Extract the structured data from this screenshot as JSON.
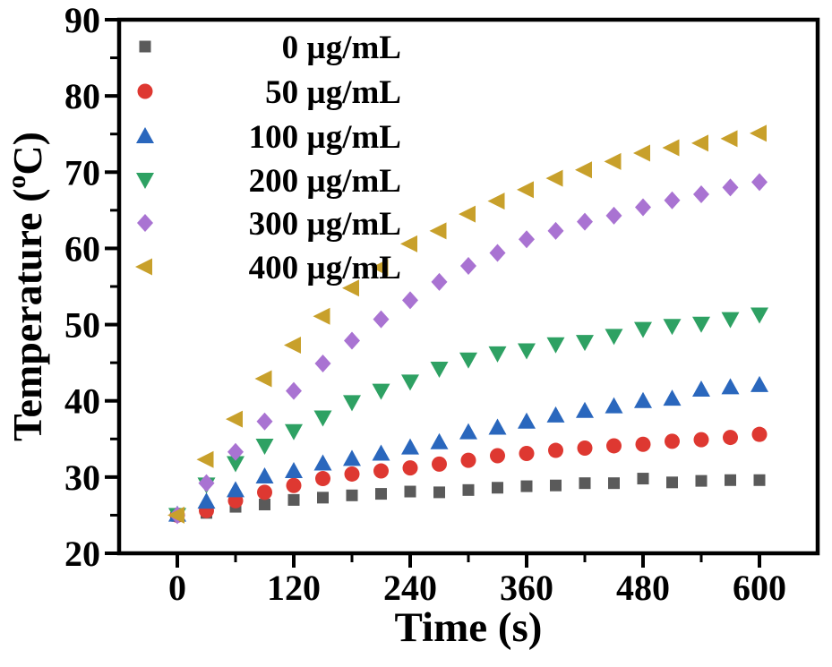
{
  "chart_data": {
    "type": "scatter",
    "title": "",
    "xlabel": "Time (s)",
    "ylabel": "Temperature (°C)",
    "ylabel_parts": {
      "pre": "Temperature (",
      "sup": "o",
      "post": "C)"
    },
    "xlim": [
      -60,
      660
    ],
    "ylim": [
      20,
      90
    ],
    "xticks": [
      0,
      120,
      240,
      360,
      480,
      600
    ],
    "yticks": [
      20,
      30,
      40,
      50,
      60,
      70,
      80,
      90
    ],
    "x_minor_ticks": [
      60,
      180,
      300,
      420,
      540
    ],
    "y_minor_ticks": [
      25,
      35,
      45,
      55,
      65,
      75,
      85
    ],
    "grid": false,
    "legend_position": "top-left",
    "axis_color": "#000000",
    "background_color": "#ffffff",
    "x": [
      0,
      30,
      60,
      90,
      120,
      150,
      180,
      210,
      240,
      270,
      300,
      330,
      360,
      390,
      420,
      450,
      480,
      510,
      540,
      570,
      600
    ],
    "series": [
      {
        "name": "0 µg/mL",
        "marker": "square",
        "color": "#5a5a5a",
        "values": [
          24.9,
          25.3,
          26.1,
          26.4,
          27.0,
          27.3,
          27.6,
          27.8,
          28.1,
          28.0,
          28.3,
          28.6,
          28.8,
          28.9,
          29.2,
          29.2,
          29.8,
          29.3,
          29.5,
          29.6,
          29.6
        ]
      },
      {
        "name": "50 µg/mL",
        "marker": "circle",
        "color": "#de3831",
        "values": [
          25.0,
          25.6,
          26.9,
          28.0,
          28.9,
          29.8,
          30.4,
          30.8,
          31.2,
          31.7,
          32.2,
          32.8,
          33.1,
          33.5,
          33.8,
          34.1,
          34.3,
          34.7,
          34.9,
          35.2,
          35.6
        ]
      },
      {
        "name": "100 µg/mL",
        "marker": "triangle-up",
        "color": "#2a67bd",
        "values": [
          25.1,
          26.8,
          28.3,
          30.1,
          30.8,
          31.8,
          32.4,
          33.1,
          33.9,
          34.6,
          35.9,
          36.5,
          37.3,
          38.1,
          38.7,
          39.3,
          40.0,
          40.3,
          41.5,
          41.8,
          42.1
        ]
      },
      {
        "name": "200 µg/mL",
        "marker": "triangle-down",
        "color": "#2ea163",
        "values": [
          25.0,
          29.0,
          31.8,
          34.1,
          36.0,
          37.8,
          39.8,
          41.3,
          42.5,
          44.2,
          45.4,
          46.2,
          46.6,
          47.4,
          47.7,
          48.5,
          49.4,
          49.8,
          50.1,
          50.7,
          51.3
        ]
      },
      {
        "name": "300 µg/mL",
        "marker": "diamond",
        "color": "#a973d2",
        "values": [
          25.0,
          29.2,
          33.3,
          37.3,
          41.3,
          44.9,
          47.9,
          50.7,
          53.2,
          55.6,
          57.7,
          59.4,
          61.2,
          62.3,
          63.5,
          64.3,
          65.4,
          66.3,
          67.1,
          68.0,
          68.7
        ]
      },
      {
        "name": "400 µg/mL",
        "marker": "triangle-left",
        "color": "#c8a02b",
        "values": [
          25.0,
          32.3,
          37.6,
          42.9,
          47.3,
          51.1,
          54.8,
          57.5,
          60.6,
          62.3,
          64.5,
          66.2,
          67.7,
          69.2,
          70.3,
          71.4,
          72.5,
          73.2,
          73.8,
          74.4,
          75.1
        ]
      }
    ]
  }
}
